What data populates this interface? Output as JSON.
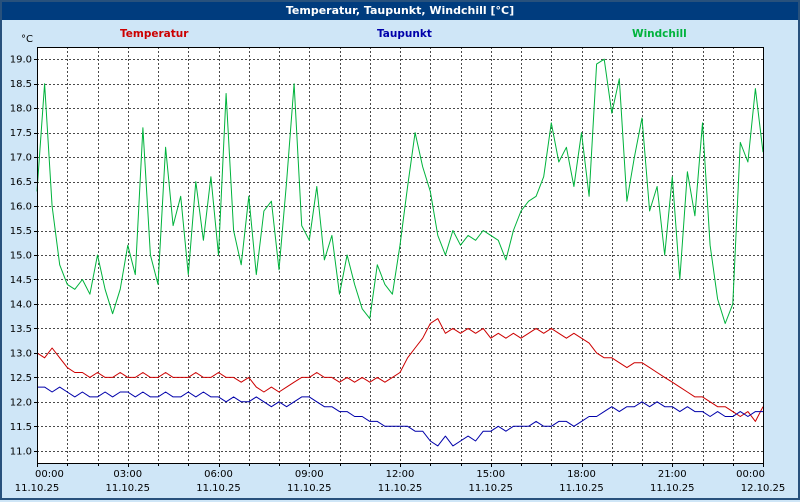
{
  "window": {
    "title": "Temperatur, Taupunkt, Windchill [°C]"
  },
  "legend": [
    {
      "label": "Temperatur",
      "color": "#cc0000"
    },
    {
      "label": "Taupunkt",
      "color": "#0000aa"
    },
    {
      "label": "Windchill",
      "color": "#00b33c"
    }
  ],
  "chart_data": {
    "type": "line",
    "title": "Temperatur, Taupunkt, Windchill [°C]",
    "ylabel": "°C",
    "ylim": [
      10.75,
      19.25
    ],
    "yticks": [
      19.0,
      18.5,
      18.0,
      17.5,
      17.0,
      16.5,
      16.0,
      15.5,
      15.0,
      14.5,
      14.0,
      13.5,
      13.0,
      12.5,
      12.0,
      11.5,
      11.0
    ],
    "x_start_hour": 0,
    "x_end_hour": 24,
    "x_step_hours": 0.25,
    "grid": {
      "x_interval_hours": 1,
      "y_interval": 0.5
    },
    "xtick_labels": [
      {
        "time": "00:00",
        "date": "11.10.25"
      },
      {
        "time": "03:00",
        "date": "11.10.25"
      },
      {
        "time": "06:00",
        "date": "11.10.25"
      },
      {
        "time": "09:00",
        "date": "11.10.25"
      },
      {
        "time": "12:00",
        "date": "11.10.25"
      },
      {
        "time": "15:00",
        "date": "11.10.25"
      },
      {
        "time": "18:00",
        "date": "11.10.25"
      },
      {
        "time": "21:00",
        "date": "11.10.25"
      },
      {
        "time": "00:00",
        "date": "12.10.25"
      }
    ],
    "series": [
      {
        "name": "Temperatur",
        "color": "#cc0000",
        "values": [
          13.0,
          12.9,
          13.1,
          12.9,
          12.7,
          12.6,
          12.6,
          12.5,
          12.6,
          12.5,
          12.5,
          12.6,
          12.5,
          12.5,
          12.6,
          12.5,
          12.5,
          12.6,
          12.5,
          12.5,
          12.5,
          12.6,
          12.5,
          12.5,
          12.6,
          12.5,
          12.5,
          12.4,
          12.5,
          12.3,
          12.2,
          12.3,
          12.2,
          12.3,
          12.4,
          12.5,
          12.5,
          12.6,
          12.5,
          12.5,
          12.4,
          12.5,
          12.4,
          12.5,
          12.4,
          12.5,
          12.4,
          12.5,
          12.6,
          12.9,
          13.1,
          13.3,
          13.6,
          13.7,
          13.4,
          13.5,
          13.4,
          13.5,
          13.4,
          13.5,
          13.3,
          13.4,
          13.3,
          13.4,
          13.3,
          13.4,
          13.5,
          13.4,
          13.5,
          13.4,
          13.3,
          13.4,
          13.3,
          13.2,
          13.0,
          12.9,
          12.9,
          12.8,
          12.7,
          12.8,
          12.8,
          12.7,
          12.6,
          12.5,
          12.4,
          12.3,
          12.2,
          12.1,
          12.1,
          12.0,
          11.9,
          11.9,
          11.8,
          11.7,
          11.8,
          11.6,
          11.9
        ]
      },
      {
        "name": "Taupunkt",
        "color": "#0000aa",
        "values": [
          12.3,
          12.3,
          12.2,
          12.3,
          12.2,
          12.1,
          12.2,
          12.1,
          12.1,
          12.2,
          12.1,
          12.2,
          12.2,
          12.1,
          12.2,
          12.1,
          12.1,
          12.2,
          12.1,
          12.1,
          12.2,
          12.1,
          12.2,
          12.1,
          12.1,
          12.0,
          12.1,
          12.0,
          12.0,
          12.1,
          12.0,
          11.9,
          12.0,
          11.9,
          12.0,
          12.1,
          12.1,
          12.0,
          11.9,
          11.9,
          11.8,
          11.8,
          11.7,
          11.7,
          11.6,
          11.6,
          11.5,
          11.5,
          11.5,
          11.5,
          11.4,
          11.4,
          11.2,
          11.1,
          11.3,
          11.1,
          11.2,
          11.3,
          11.2,
          11.4,
          11.4,
          11.5,
          11.4,
          11.5,
          11.5,
          11.5,
          11.6,
          11.5,
          11.5,
          11.6,
          11.6,
          11.5,
          11.6,
          11.7,
          11.7,
          11.8,
          11.9,
          11.8,
          11.9,
          11.9,
          12.0,
          11.9,
          12.0,
          11.9,
          11.9,
          11.8,
          11.9,
          11.8,
          11.8,
          11.7,
          11.8,
          11.7,
          11.7,
          11.8,
          11.7,
          11.8,
          11.8
        ]
      },
      {
        "name": "Windchill",
        "color": "#00b33c",
        "values": [
          16.3,
          18.5,
          16.0,
          14.8,
          14.4,
          14.3,
          14.5,
          14.2,
          15.0,
          14.3,
          13.8,
          14.3,
          15.2,
          14.6,
          17.6,
          15.0,
          14.4,
          17.2,
          15.6,
          16.2,
          14.6,
          16.5,
          15.3,
          16.6,
          15.0,
          18.3,
          15.5,
          14.8,
          16.2,
          14.6,
          15.9,
          16.1,
          14.7,
          16.5,
          18.5,
          15.6,
          15.3,
          16.4,
          14.9,
          15.4,
          14.2,
          15.0,
          14.4,
          13.9,
          13.7,
          14.8,
          14.4,
          14.2,
          15.2,
          16.4,
          17.5,
          16.8,
          16.3,
          15.4,
          15.0,
          15.5,
          15.2,
          15.4,
          15.3,
          15.5,
          15.4,
          15.3,
          14.9,
          15.5,
          15.9,
          16.1,
          16.2,
          16.6,
          17.7,
          16.9,
          17.2,
          16.4,
          17.5,
          16.2,
          18.9,
          19.0,
          17.9,
          18.6,
          16.1,
          17.0,
          17.8,
          15.9,
          16.4,
          15.0,
          16.6,
          14.5,
          16.7,
          15.8,
          17.7,
          15.2,
          14.1,
          13.6,
          14.0,
          17.3,
          16.9,
          18.4,
          17.1
        ]
      }
    ]
  }
}
